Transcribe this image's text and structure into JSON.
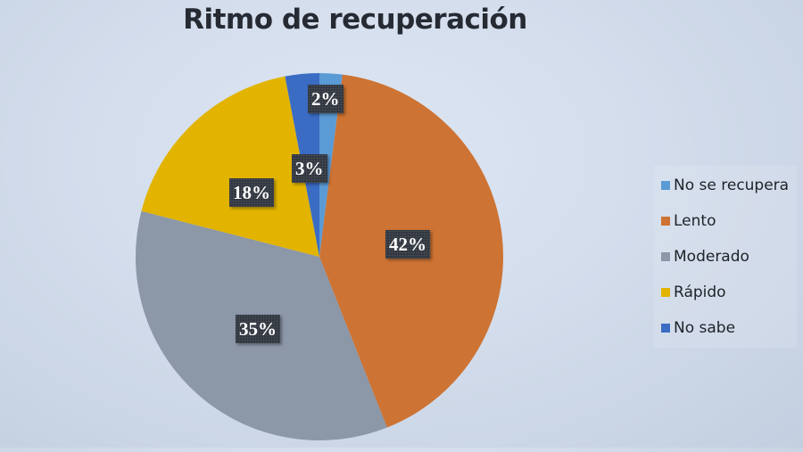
{
  "chart_data": {
    "type": "pie",
    "title": "Ritmo de recuperación",
    "categories": [
      "No se recupera",
      "Lento",
      "Moderado",
      "Rápido",
      "No sabe"
    ],
    "values": [
      2,
      42,
      35,
      18,
      3
    ],
    "labels": [
      "2%",
      "42%",
      "35%",
      "18%",
      "3%"
    ],
    "colors": [
      "#5b9bd5",
      "#cd7333",
      "#8c97a8",
      "#e2b400",
      "#3b6cc4"
    ],
    "start_angle": "12 o'clock, clockwise",
    "legend_position": "right"
  },
  "legend": {
    "items": [
      {
        "label": "No se recupera",
        "color": "#5b9bd5"
      },
      {
        "label": "Lento",
        "color": "#cd7333"
      },
      {
        "label": "Moderado",
        "color": "#8c97a8"
      },
      {
        "label": "Rápido",
        "color": "#e2b400"
      },
      {
        "label": "No sabe",
        "color": "#3b6cc4"
      }
    ]
  }
}
